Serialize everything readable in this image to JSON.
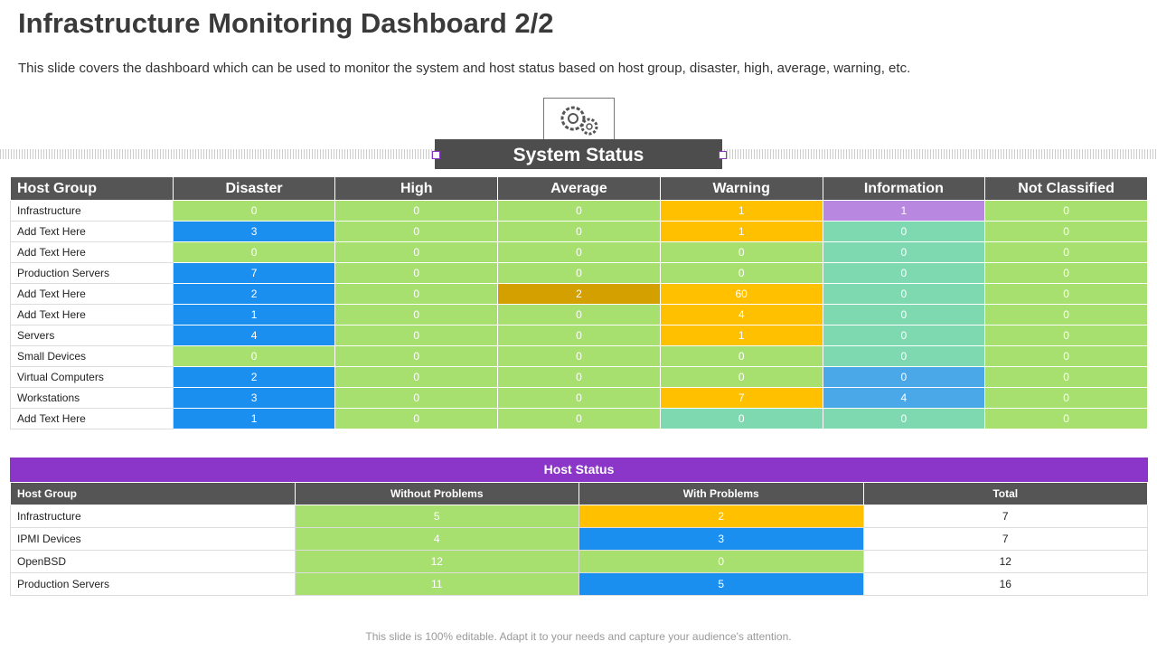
{
  "header": {
    "title": "Infrastructure Monitoring Dashboard 2/2",
    "subtitle": "This slide covers the dashboard which can be used to monitor the system and host status based on host group, disaster, high, average, warning, etc."
  },
  "system_status": {
    "title": "System Status",
    "columns": [
      "Host Group",
      "Disaster",
      "High",
      "Average",
      "Warning",
      "Information",
      "Not Classified"
    ],
    "rows": [
      [
        "Infrastructure",
        0,
        0,
        0,
        1,
        1,
        0
      ],
      [
        "Add Text Here",
        3,
        0,
        0,
        1,
        0,
        0
      ],
      [
        "Add Text Here",
        0,
        0,
        0,
        0,
        0,
        0
      ],
      [
        "Production Servers",
        7,
        0,
        0,
        0,
        0,
        0
      ],
      [
        "Add Text Here",
        2,
        0,
        2,
        60,
        0,
        0
      ],
      [
        "Add Text Here",
        1,
        0,
        0,
        4,
        0,
        0
      ],
      [
        "Servers",
        4,
        0,
        0,
        1,
        0,
        0
      ],
      [
        "Small Devices",
        0,
        0,
        0,
        0,
        0,
        0
      ],
      [
        "Virtual Computers",
        2,
        0,
        0,
        0,
        0,
        0
      ],
      [
        "Workstations",
        3,
        0,
        0,
        7,
        4,
        0
      ],
      [
        "Add Text Here",
        1,
        0,
        0,
        0,
        0,
        0
      ]
    ],
    "colors": [
      [
        "#a8e070",
        "#a8e070",
        "#a8e070",
        "#ffc000",
        "#b888e0",
        "#a8e070"
      ],
      [
        "#1a8ff0",
        "#a8e070",
        "#a8e070",
        "#ffc000",
        "#7ed8b0",
        "#a8e070"
      ],
      [
        "#a8e070",
        "#a8e070",
        "#a8e070",
        "#a8e070",
        "#7ed8b0",
        "#a8e070"
      ],
      [
        "#1a8ff0",
        "#a8e070",
        "#a8e070",
        "#a8e070",
        "#7ed8b0",
        "#a8e070"
      ],
      [
        "#1a8ff0",
        "#a8e070",
        "#d4a000",
        "#ffc000",
        "#7ed8b0",
        "#a8e070"
      ],
      [
        "#1a8ff0",
        "#a8e070",
        "#a8e070",
        "#ffc000",
        "#7ed8b0",
        "#a8e070"
      ],
      [
        "#1a8ff0",
        "#a8e070",
        "#a8e070",
        "#ffc000",
        "#7ed8b0",
        "#a8e070"
      ],
      [
        "#a8e070",
        "#a8e070",
        "#a8e070",
        "#a8e070",
        "#7ed8b0",
        "#a8e070"
      ],
      [
        "#1a8ff0",
        "#a8e070",
        "#a8e070",
        "#a8e070",
        "#4aa8e8",
        "#a8e070"
      ],
      [
        "#1a8ff0",
        "#a8e070",
        "#a8e070",
        "#ffc000",
        "#4aa8e8",
        "#a8e070"
      ],
      [
        "#1a8ff0",
        "#a8e070",
        "#a8e070",
        "#7ed8b0",
        "#7ed8b0",
        "#a8e070"
      ]
    ]
  },
  "host_status": {
    "title": "Host Status",
    "columns": [
      "Host Group",
      "Without Problems",
      "With Problems",
      "Total"
    ],
    "rows": [
      [
        "Infrastructure",
        5,
        2,
        7
      ],
      [
        "IPMI Devices",
        4,
        3,
        7
      ],
      [
        "OpenBSD",
        12,
        0,
        12
      ],
      [
        "Production Servers",
        11,
        5,
        16
      ]
    ],
    "colors": [
      [
        "#a8e070",
        "#ffc000",
        "#ffffff"
      ],
      [
        "#a8e070",
        "#1a8ff0",
        "#ffffff"
      ],
      [
        "#a8e070",
        "#a8e070",
        "#ffffff"
      ],
      [
        "#a8e070",
        "#1a8ff0",
        "#ffffff"
      ]
    ]
  },
  "footer": "This slide is 100% editable. Adapt it to your needs and capture your audience's attention."
}
